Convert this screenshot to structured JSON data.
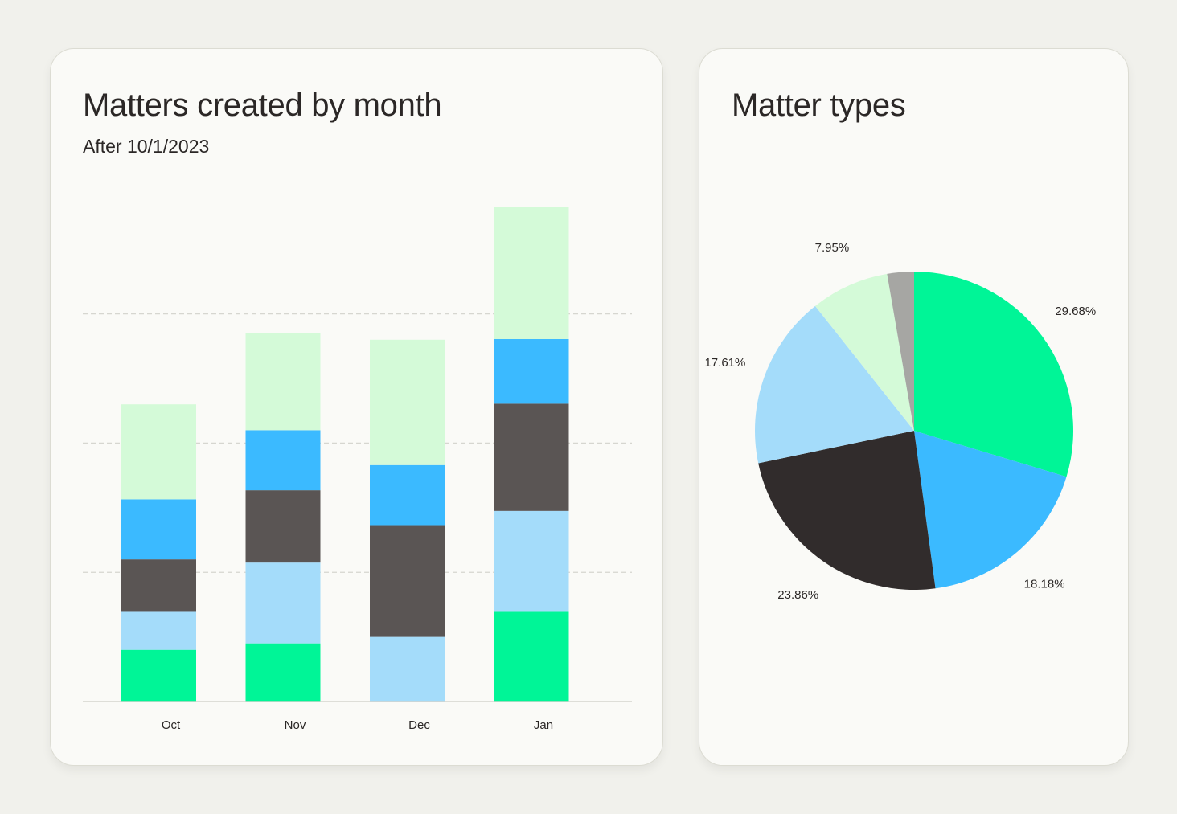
{
  "bar_panel": {
    "title": "Matters created by month",
    "subtitle": "After 10/1/2023"
  },
  "pie_panel": {
    "title": "Matter types"
  },
  "chart_data": [
    {
      "type": "bar",
      "stacked": true,
      "title": "Matters created by month",
      "subtitle": "After 10/1/2023",
      "categories": [
        "Oct",
        "Nov",
        "Dec",
        "Jan"
      ],
      "series": [
        {
          "color": "#00f597",
          "values": [
            0.8,
            0.9,
            0,
            1.4
          ]
        },
        {
          "color": "#a4dcfa",
          "values": [
            0.6,
            1.25,
            1.0,
            1.55
          ]
        },
        {
          "color": "#5a5554",
          "values": [
            0.8,
            1.12,
            1.73,
            1.66
          ]
        },
        {
          "color": "#3bbaff",
          "values": [
            0.93,
            0.93,
            0.93,
            1.0
          ]
        },
        {
          "color": "#d4fad8",
          "values": [
            1.47,
            1.5,
            1.94,
            2.05
          ]
        }
      ],
      "ylim": [
        0,
        7.65
      ],
      "gridlines": [
        2,
        4,
        6
      ],
      "grid": "dashed horizontal",
      "legend": "none",
      "xlabel": "",
      "ylabel": ""
    },
    {
      "type": "pie",
      "title": "Matter types",
      "slices": [
        {
          "value": 29.68,
          "label": "29.68%",
          "color": "#00f597"
        },
        {
          "value": 18.18,
          "label": "18.18%",
          "color": "#3bbaff"
        },
        {
          "value": 23.86,
          "label": "23.86%",
          "color": "#312c2c"
        },
        {
          "value": 17.61,
          "label": "17.61%",
          "color": "#a4dcfa"
        },
        {
          "value": 7.95,
          "label": "7.95%",
          "color": "#d4fad8"
        },
        {
          "value": 2.72,
          "label": "",
          "color": "#a6a6a3"
        }
      ],
      "start": "top",
      "direction": "clockwise"
    }
  ]
}
